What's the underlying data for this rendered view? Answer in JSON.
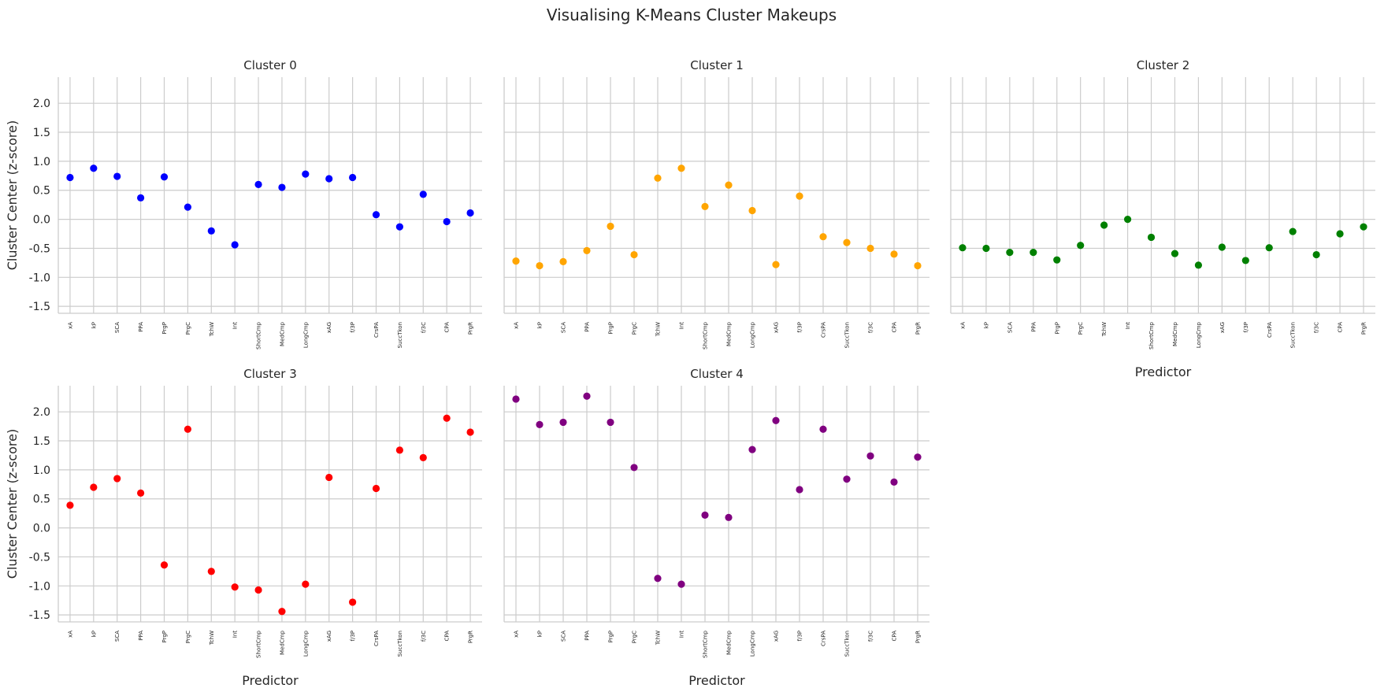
{
  "chart_data": {
    "type": "scatter",
    "title": "Visualising K-Means Cluster Makeups",
    "xlabel": "Predictor",
    "ylabel": "Cluster Center (z-score)",
    "ylim": [
      -1.62,
      2.45
    ],
    "yticks": [
      2.0,
      1.5,
      1.0,
      0.5,
      0.0,
      -0.5,
      -1.0,
      -1.5
    ],
    "grid": true,
    "categories": [
      "xA",
      "kP",
      "SCA",
      "PPA",
      "PrgP",
      "PrgC",
      "TchW",
      "Int",
      "ShortCmp",
      "MedCmp",
      "LongCmp",
      "xAG",
      "f/3P",
      "CrsPA",
      "SuccTkon",
      "f/3C",
      "CPA",
      "PrgR"
    ],
    "panels": [
      {
        "title": "Cluster 0",
        "color": "#0000ff",
        "values": [
          0.72,
          0.88,
          0.74,
          0.37,
          0.73,
          0.21,
          -0.2,
          -0.44,
          0.6,
          0.55,
          0.78,
          0.7,
          0.72,
          0.08,
          -0.13,
          0.43,
          -0.04,
          0.11
        ]
      },
      {
        "title": "Cluster 1",
        "color": "#ffa500",
        "values": [
          -0.72,
          -0.8,
          -0.73,
          -0.54,
          -0.12,
          -0.61,
          0.71,
          0.88,
          0.22,
          0.59,
          0.15,
          -0.78,
          0.4,
          -0.3,
          -0.4,
          -0.5,
          -0.6,
          -0.8
        ]
      },
      {
        "title": "Cluster 2",
        "color": "#008000",
        "values": [
          -0.49,
          -0.5,
          -0.57,
          -0.57,
          -0.7,
          -0.45,
          -0.1,
          0.0,
          -0.31,
          -0.59,
          -0.79,
          -0.48,
          -0.71,
          -0.49,
          -0.21,
          -0.61,
          -0.25,
          -0.13
        ]
      },
      {
        "title": "Cluster 3",
        "color": "#ff0000",
        "values": [
          0.39,
          0.7,
          0.85,
          0.6,
          -0.64,
          1.7,
          -0.75,
          -1.02,
          -1.07,
          -1.44,
          -0.97,
          0.87,
          -1.28,
          0.68,
          1.34,
          1.21,
          1.89,
          1.65
        ]
      },
      {
        "title": "Cluster 4",
        "color": "#800080",
        "values": [
          2.22,
          1.78,
          1.82,
          2.27,
          1.82,
          1.04,
          -0.87,
          -0.97,
          0.22,
          0.18,
          1.35,
          1.85,
          0.66,
          1.7,
          0.84,
          1.24,
          0.79,
          1.22
        ]
      }
    ]
  }
}
